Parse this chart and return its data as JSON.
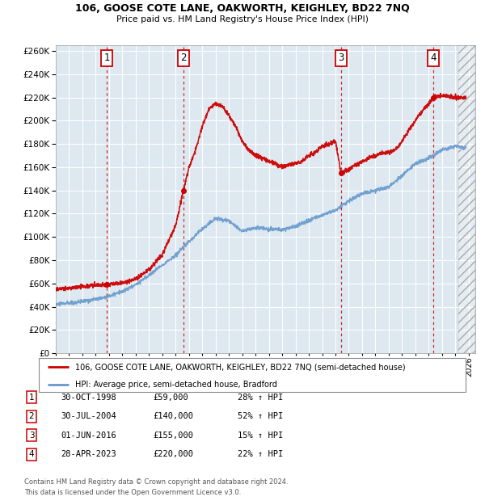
{
  "title": "106, GOOSE COTE LANE, OAKWORTH, KEIGHLEY, BD22 7NQ",
  "subtitle": "Price paid vs. HM Land Registry's House Price Index (HPI)",
  "legend_line1": "106, GOOSE COTE LANE, OAKWORTH, KEIGHLEY, BD22 7NQ (semi-detached house)",
  "legend_line2": "HPI: Average price, semi-detached house, Bradford",
  "footer1": "Contains HM Land Registry data © Crown copyright and database right 2024.",
  "footer2": "This data is licensed under the Open Government Licence v3.0.",
  "sales": [
    {
      "num": 1,
      "date_str": "30-OCT-1998",
      "price": 59000,
      "pct": "28%",
      "year": 1998.83
    },
    {
      "num": 2,
      "date_str": "30-JUL-2004",
      "price": 140000,
      "pct": "52%",
      "year": 2004.58
    },
    {
      "num": 3,
      "date_str": "01-JUN-2016",
      "price": 155000,
      "pct": "15%",
      "year": 2016.42
    },
    {
      "num": 4,
      "date_str": "28-APR-2023",
      "price": 220000,
      "pct": "22%",
      "year": 2023.33
    }
  ],
  "ylim": [
    0,
    265000
  ],
  "xlim_start": 1995.0,
  "xlim_end": 2026.5,
  "red_color": "#cc0000",
  "blue_color": "#6699cc",
  "bg_plot": "#dde8f0",
  "bg_figure": "#ffffff",
  "grid_color": "#ffffff",
  "hpi_anchors_x": [
    1995,
    1996,
    1997,
    1998,
    1999,
    2000,
    2001,
    2002,
    2003,
    2004,
    2005,
    2006,
    2007,
    2008,
    2009,
    2010,
    2011,
    2012,
    2013,
    2014,
    2015,
    2016,
    2017,
    2018,
    2019,
    2020,
    2021,
    2022,
    2023,
    2024,
    2025,
    2026
  ],
  "hpi_anchors_y": [
    42000,
    43000,
    44500,
    46500,
    49000,
    53000,
    59000,
    67000,
    76000,
    84000,
    96000,
    107000,
    116000,
    114000,
    105000,
    108000,
    107000,
    106000,
    109000,
    114000,
    119000,
    123000,
    131000,
    137000,
    140000,
    143000,
    153000,
    163000,
    168000,
    175000,
    178000,
    176000
  ],
  "price_anchors_x": [
    1995.0,
    1996.0,
    1997.0,
    1998.83,
    1999.3,
    1999.8,
    2000.5,
    2001.2,
    2002.0,
    2003.0,
    2004.0,
    2004.58,
    2005.0,
    2005.5,
    2006.0,
    2006.5,
    2007.0,
    2007.5,
    2008.0,
    2008.5,
    2009.0,
    2009.5,
    2010.0,
    2010.5,
    2011.0,
    2011.5,
    2012.0,
    2012.5,
    2013.0,
    2013.5,
    2014.0,
    2014.5,
    2015.0,
    2015.5,
    2016.0,
    2016.42,
    2017.0,
    2017.5,
    2018.0,
    2018.5,
    2019.0,
    2019.5,
    2020.0,
    2020.5,
    2021.0,
    2021.5,
    2022.0,
    2022.5,
    2023.0,
    2023.33,
    2024.0,
    2025.0
  ],
  "price_anchors_y": [
    55000,
    56000,
    57500,
    59000,
    59500,
    60000,
    62000,
    65000,
    72000,
    85000,
    110000,
    140000,
    160000,
    175000,
    195000,
    210000,
    215000,
    212000,
    205000,
    195000,
    182000,
    175000,
    170000,
    168000,
    165000,
    163000,
    160000,
    162000,
    163000,
    165000,
    170000,
    173000,
    178000,
    180000,
    182000,
    155000,
    158000,
    162000,
    165000,
    168000,
    170000,
    172000,
    173000,
    175000,
    182000,
    192000,
    200000,
    208000,
    215000,
    220000,
    222000,
    220000
  ]
}
